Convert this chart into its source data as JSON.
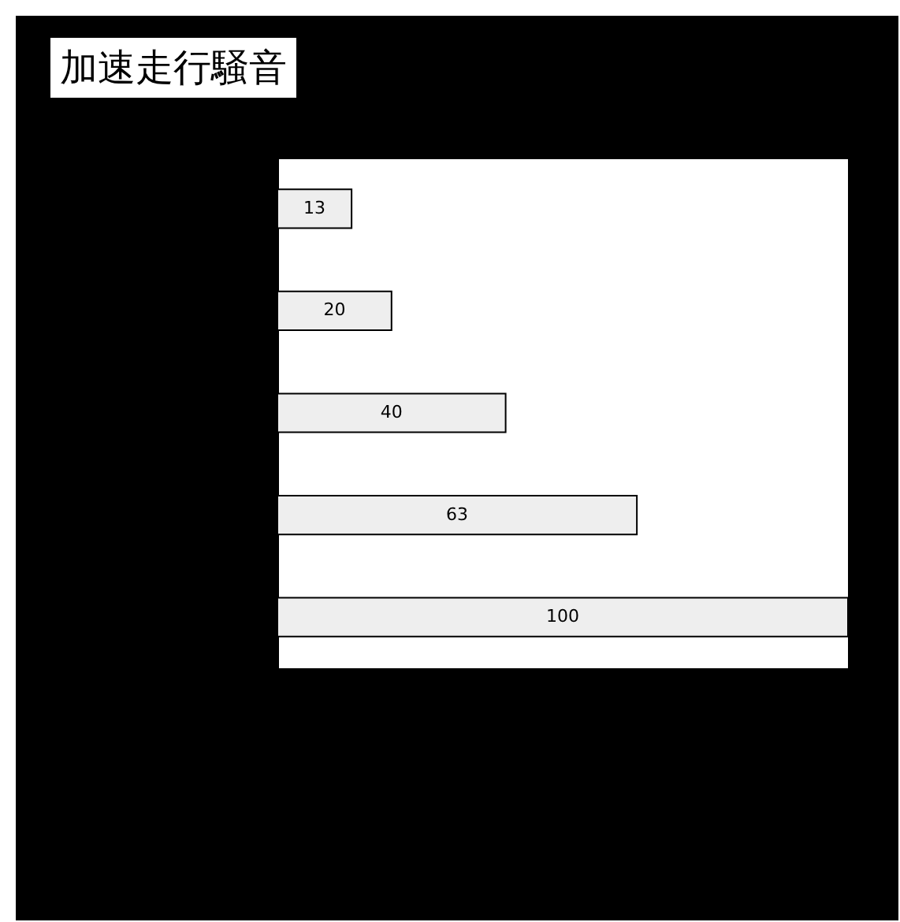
{
  "chart_data": {
    "type": "bar",
    "title": "加速走行騒音",
    "orientation": "horizontal",
    "categories": [
      null,
      null,
      null,
      null,
      null
    ],
    "values": [
      13,
      20,
      40,
      63,
      100
    ],
    "color": "#eeeeee",
    "xlim": [
      0,
      100
    ],
    "data_labels": true
  }
}
